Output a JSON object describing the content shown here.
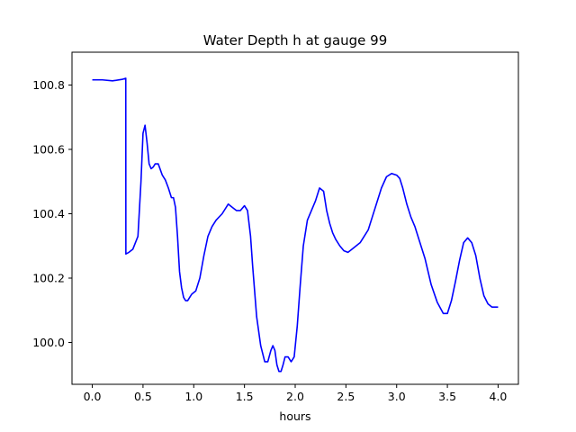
{
  "chart_data": {
    "type": "line",
    "title": "Water Depth h at gauge 99",
    "xlabel": "hours",
    "ylabel": "",
    "xlim": [
      -0.2,
      4.2
    ],
    "ylim": [
      99.87,
      100.902
    ],
    "xticks": [
      0.0,
      0.5,
      1.0,
      1.5,
      2.0,
      2.5,
      3.0,
      3.5,
      4.0
    ],
    "xtick_labels": [
      "0.0",
      "0.5",
      "1.0",
      "1.5",
      "2.0",
      "2.5",
      "3.0",
      "3.5",
      "4.0"
    ],
    "yticks": [
      100.0,
      100.2,
      100.4,
      100.6,
      100.8
    ],
    "ytick_labels": [
      "100.0",
      "100.2",
      "100.4",
      "100.6",
      "100.8"
    ],
    "grid": false,
    "series": [
      {
        "color": "#0000ff",
        "x": [
          0.0,
          0.1,
          0.2,
          0.3,
          0.33,
          0.331,
          0.36,
          0.4,
          0.45,
          0.48,
          0.5,
          0.52,
          0.54,
          0.56,
          0.58,
          0.6,
          0.62,
          0.65,
          0.69,
          0.72,
          0.75,
          0.78,
          0.8,
          0.82,
          0.84,
          0.86,
          0.88,
          0.9,
          0.92,
          0.94,
          0.96,
          0.98,
          1.02,
          1.06,
          1.1,
          1.14,
          1.18,
          1.22,
          1.28,
          1.34,
          1.38,
          1.42,
          1.46,
          1.5,
          1.53,
          1.56,
          1.58,
          1.62,
          1.66,
          1.7,
          1.73,
          1.76,
          1.78,
          1.8,
          1.82,
          1.84,
          1.86,
          1.88,
          1.9,
          1.93,
          1.96,
          1.99,
          2.02,
          2.05,
          2.08,
          2.12,
          2.16,
          2.2,
          2.24,
          2.28,
          2.31,
          2.34,
          2.37,
          2.4,
          2.44,
          2.48,
          2.52,
          2.56,
          2.6,
          2.64,
          2.68,
          2.72,
          2.76,
          2.8,
          2.85,
          2.9,
          2.95,
          3.0,
          3.03,
          3.06,
          3.1,
          3.14,
          3.18,
          3.22,
          3.28,
          3.34,
          3.4,
          3.46,
          3.5,
          3.54,
          3.58,
          3.62,
          3.66,
          3.7,
          3.74,
          3.78,
          3.82,
          3.86,
          3.9,
          3.94,
          3.97,
          4.0
        ],
        "y": [
          100.816,
          100.816,
          100.813,
          100.818,
          100.821,
          100.275,
          100.28,
          100.29,
          100.33,
          100.5,
          100.65,
          100.675,
          100.62,
          100.555,
          100.54,
          100.545,
          100.555,
          100.555,
          100.52,
          100.505,
          100.48,
          100.45,
          100.45,
          100.42,
          100.33,
          100.22,
          100.17,
          100.14,
          100.13,
          100.13,
          100.14,
          100.15,
          100.16,
          100.2,
          100.27,
          100.33,
          100.36,
          100.38,
          100.4,
          100.43,
          100.42,
          100.41,
          100.41,
          100.425,
          100.41,
          100.33,
          100.24,
          100.08,
          99.99,
          99.94,
          99.94,
          99.975,
          99.99,
          99.975,
          99.93,
          99.91,
          99.91,
          99.93,
          99.955,
          99.955,
          99.94,
          99.955,
          100.05,
          100.18,
          100.3,
          100.38,
          100.41,
          100.44,
          100.48,
          100.47,
          100.41,
          100.37,
          100.34,
          100.32,
          100.3,
          100.285,
          100.28,
          100.29,
          100.3,
          100.31,
          100.33,
          100.35,
          100.39,
          100.43,
          100.48,
          100.515,
          100.525,
          100.52,
          100.51,
          100.48,
          100.43,
          100.39,
          100.36,
          100.32,
          100.26,
          100.18,
          100.125,
          100.09,
          100.09,
          100.13,
          100.19,
          100.255,
          100.31,
          100.325,
          100.31,
          100.27,
          100.2,
          100.145,
          100.12,
          100.11,
          100.11,
          100.11
        ]
      }
    ]
  }
}
